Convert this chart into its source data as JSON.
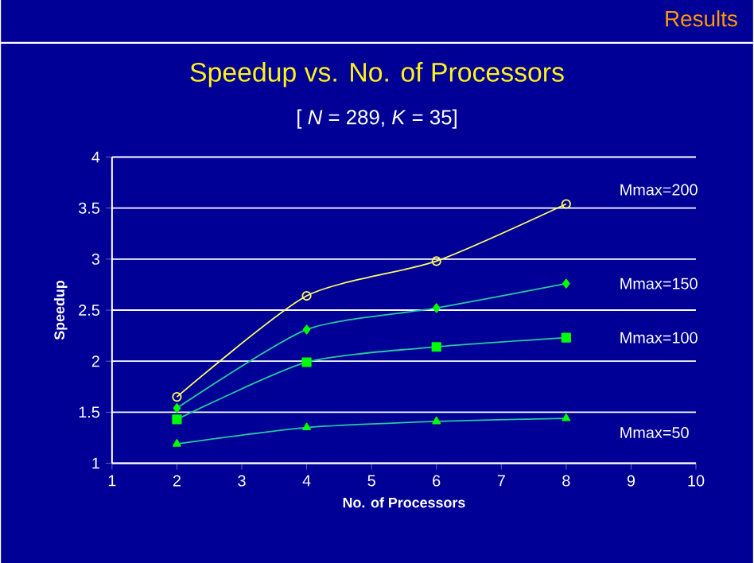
{
  "chart_data": {
    "type": "line",
    "title": "Speedup vs. No. of Processors",
    "subtitle": "[ *N* = 289, *K* = 35]",
    "xlabel": "No. of Processors",
    "ylabel": "Speedup",
    "annotations": [
      "Results"
    ],
    "xlim": [
      1,
      10
    ],
    "xticks": [
      1,
      2,
      3,
      4,
      5,
      6,
      7,
      8,
      9,
      10
    ],
    "ylim": [
      1,
      4
    ],
    "yticks": [
      1,
      1.5,
      2,
      2.5,
      3,
      3.5,
      4
    ],
    "grid": "y",
    "x": [
      2,
      4,
      6,
      8
    ],
    "series": [
      {
        "name": "Mmax=200",
        "color": "#ffff66",
        "marker": "circle",
        "values": [
          1.65,
          2.64,
          2.98,
          3.54
        ]
      },
      {
        "name": "Mmax=150",
        "color": "#00ff00",
        "marker": "diamond",
        "values": [
          1.54,
          2.31,
          2.52,
          2.76
        ]
      },
      {
        "name": "Mmax=100",
        "color": "#00ff00",
        "marker": "square",
        "values": [
          1.43,
          1.99,
          2.14,
          2.23
        ]
      },
      {
        "name": "Mmax=50",
        "color": "#00ff00",
        "marker": "triangle",
        "values": [
          1.19,
          1.35,
          1.41,
          1.44
        ]
      }
    ]
  }
}
